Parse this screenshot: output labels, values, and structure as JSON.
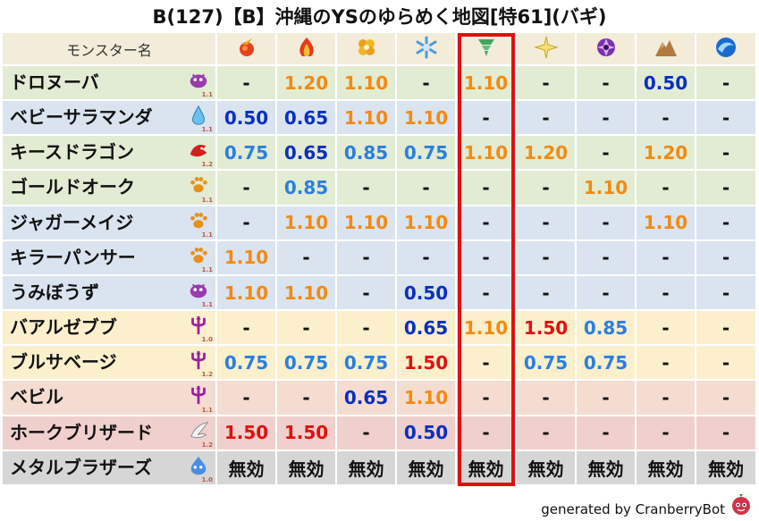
{
  "title": "B(127)【B】沖縄のYSのゆらめく地図[特61](バギ)",
  "header": {
    "name_label": "モンスター名",
    "elements": [
      "fire-icon",
      "flame-icon",
      "ground-icon",
      "ice-icon",
      "wind-icon",
      "light-icon",
      "dark-icon",
      "rock-icon",
      "water-icon"
    ]
  },
  "rows": [
    {
      "name": "ドロヌーバ",
      "family": "slime-family-icon",
      "level": "1.1",
      "bg": "green",
      "cells": [
        [
          "-",
          "dash"
        ],
        [
          "1.20",
          "weak"
        ],
        [
          "1.10",
          "weak"
        ],
        [
          "-",
          "dash"
        ],
        [
          "1.10",
          "weak"
        ],
        [
          "-",
          "dash"
        ],
        [
          "-",
          "dash"
        ],
        [
          "0.50",
          "half"
        ],
        [
          "-",
          "dash"
        ]
      ]
    },
    {
      "name": "ベビーサラマンダ",
      "family": "water-drop-family-icon",
      "level": "1.1",
      "bg": "blue",
      "cells": [
        [
          "0.50",
          "half"
        ],
        [
          "0.65",
          "half"
        ],
        [
          "1.10",
          "weak"
        ],
        [
          "1.10",
          "weak"
        ],
        [
          "-",
          "dash"
        ],
        [
          "-",
          "dash"
        ],
        [
          "-",
          "dash"
        ],
        [
          "-",
          "dash"
        ],
        [
          "-",
          "dash"
        ]
      ]
    },
    {
      "name": "キースドラゴン",
      "family": "dragon-family-icon",
      "level": "1.2",
      "bg": "green",
      "cells": [
        [
          "0.75",
          "resist"
        ],
        [
          "0.65",
          "half"
        ],
        [
          "0.85",
          "resist"
        ],
        [
          "0.75",
          "resist"
        ],
        [
          "1.10",
          "weak"
        ],
        [
          "1.20",
          "weak"
        ],
        [
          "-",
          "dash"
        ],
        [
          "1.20",
          "weak"
        ],
        [
          "-",
          "dash"
        ]
      ]
    },
    {
      "name": "ゴールドオーク",
      "family": "beast-family-icon",
      "level": "1.1",
      "bg": "green",
      "cells": [
        [
          "-",
          "dash"
        ],
        [
          "0.85",
          "resist"
        ],
        [
          "-",
          "dash"
        ],
        [
          "-",
          "dash"
        ],
        [
          "-",
          "dash"
        ],
        [
          "-",
          "dash"
        ],
        [
          "1.10",
          "weak"
        ],
        [
          "-",
          "dash"
        ],
        [
          "-",
          "dash"
        ]
      ]
    },
    {
      "name": "ジャガーメイジ",
      "family": "beast-family-icon",
      "level": "1.1",
      "bg": "blue",
      "cells": [
        [
          "-",
          "dash"
        ],
        [
          "1.10",
          "weak"
        ],
        [
          "1.10",
          "weak"
        ],
        [
          "1.10",
          "weak"
        ],
        [
          "-",
          "dash"
        ],
        [
          "-",
          "dash"
        ],
        [
          "-",
          "dash"
        ],
        [
          "1.10",
          "weak"
        ],
        [
          "-",
          "dash"
        ]
      ]
    },
    {
      "name": "キラーパンサー",
      "family": "beast-family-icon",
      "level": "1.1",
      "bg": "blue",
      "cells": [
        [
          "1.10",
          "weak"
        ],
        [
          "-",
          "dash"
        ],
        [
          "-",
          "dash"
        ],
        [
          "-",
          "dash"
        ],
        [
          "-",
          "dash"
        ],
        [
          "-",
          "dash"
        ],
        [
          "-",
          "dash"
        ],
        [
          "-",
          "dash"
        ],
        [
          "-",
          "dash"
        ]
      ]
    },
    {
      "name": "うみぼうず",
      "family": "slime-family-icon",
      "level": "1.1",
      "bg": "blue",
      "cells": [
        [
          "1.10",
          "weak"
        ],
        [
          "1.10",
          "weak"
        ],
        [
          "-",
          "dash"
        ],
        [
          "0.50",
          "half"
        ],
        [
          "-",
          "dash"
        ],
        [
          "-",
          "dash"
        ],
        [
          "-",
          "dash"
        ],
        [
          "-",
          "dash"
        ],
        [
          "-",
          "dash"
        ]
      ]
    },
    {
      "name": "バアルゼブブ",
      "family": "demon-family-icon",
      "level": "1.0",
      "bg": "yellow",
      "cells": [
        [
          "-",
          "dash"
        ],
        [
          "-",
          "dash"
        ],
        [
          "-",
          "dash"
        ],
        [
          "0.65",
          "half"
        ],
        [
          "1.10",
          "weak"
        ],
        [
          "1.50",
          "vweak"
        ],
        [
          "0.85",
          "resist"
        ],
        [
          "-",
          "dash"
        ],
        [
          "-",
          "dash"
        ]
      ]
    },
    {
      "name": "ブルサベージ",
      "family": "demon-family-icon",
      "level": "1.2",
      "bg": "yellow",
      "cells": [
        [
          "0.75",
          "resist"
        ],
        [
          "0.75",
          "resist"
        ],
        [
          "0.75",
          "resist"
        ],
        [
          "1.50",
          "vweak"
        ],
        [
          "-",
          "dash"
        ],
        [
          "0.75",
          "resist"
        ],
        [
          "0.75",
          "resist"
        ],
        [
          "-",
          "dash"
        ],
        [
          "-",
          "dash"
        ]
      ]
    },
    {
      "name": "ベビル",
      "family": "demon-family-icon",
      "level": "1.1",
      "bg": "pink",
      "cells": [
        [
          "-",
          "dash"
        ],
        [
          "-",
          "dash"
        ],
        [
          "0.65",
          "half"
        ],
        [
          "1.10",
          "weak"
        ],
        [
          "-",
          "dash"
        ],
        [
          "-",
          "dash"
        ],
        [
          "-",
          "dash"
        ],
        [
          "-",
          "dash"
        ],
        [
          "-",
          "dash"
        ]
      ]
    },
    {
      "name": "ホークブリザード",
      "family": "wing-family-icon",
      "level": "1.2",
      "bg": "red",
      "cells": [
        [
          "1.50",
          "vweak"
        ],
        [
          "1.50",
          "vweak"
        ],
        [
          "-",
          "dash"
        ],
        [
          "0.50",
          "half"
        ],
        [
          "-",
          "dash"
        ],
        [
          "-",
          "dash"
        ],
        [
          "-",
          "dash"
        ],
        [
          "-",
          "dash"
        ],
        [
          "-",
          "dash"
        ]
      ]
    },
    {
      "name": "メタルブラザーズ",
      "family": "metal-slime-family-icon",
      "level": "1.0",
      "bg": "gray",
      "cells": [
        [
          "無効",
          "immune"
        ],
        [
          "無効",
          "immune"
        ],
        [
          "無効",
          "immune"
        ],
        [
          "無効",
          "immune"
        ],
        [
          "無効",
          "immune"
        ],
        [
          "無効",
          "immune"
        ],
        [
          "無効",
          "immune"
        ],
        [
          "無効",
          "immune"
        ],
        [
          "無効",
          "immune"
        ]
      ]
    }
  ],
  "footer": "generated by CranberryBot",
  "colors": {
    "highlight": "#e01010",
    "weak": "#f28a12",
    "very_weak": "#e01010",
    "half": "#0a2fbf",
    "resist": "#2a7fe0"
  }
}
